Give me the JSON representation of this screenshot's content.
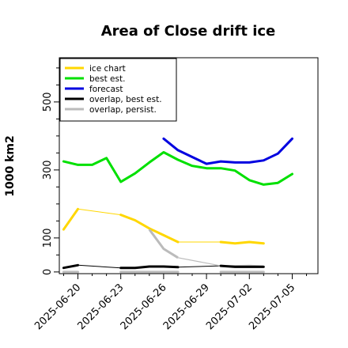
{
  "chart_data": {
    "type": "line",
    "title": "Area of Close drift ice",
    "ylabel": "1000 km2",
    "xlabel": "",
    "ylim": [
      -5,
      630
    ],
    "yticks": [
      0,
      100,
      300,
      500
    ],
    "xticks": [
      {
        "label": "2025-06-20",
        "x": 0,
        "color": "#000000"
      },
      {
        "label": "2025-06-23",
        "x": 3,
        "color": "#000000"
      },
      {
        "label": "2025-06-26",
        "x": 6,
        "color": "#228b22"
      },
      {
        "label": "2025-06-29",
        "x": 9,
        "color": "#000000"
      },
      {
        "label": "2025-07-02",
        "x": 12,
        "color": "#000000"
      },
      {
        "label": "2025-07-05",
        "x": 15,
        "color": "#000000"
      }
    ],
    "xlim": [
      -1.3,
      16.8
    ],
    "grid": false,
    "legend_position": "top-left",
    "series": [
      {
        "name": "ice chart",
        "color": "#ffd700",
        "width": 3,
        "points": [
          [
            -1,
            125
          ],
          [
            0,
            185
          ],
          [
            3,
            168
          ],
          [
            4,
            152
          ],
          [
            5,
            128
          ],
          [
            6,
            108
          ],
          [
            7,
            88
          ],
          [
            10,
            88
          ],
          [
            11,
            84
          ],
          [
            12,
            88
          ],
          [
            13,
            84
          ]
        ]
      },
      {
        "name": "best est.",
        "color": "#00e000",
        "width": 3,
        "points": [
          [
            -1,
            325
          ],
          [
            0,
            315
          ],
          [
            1,
            315
          ],
          [
            2,
            335
          ],
          [
            3,
            265
          ],
          [
            4,
            290
          ],
          [
            5,
            322
          ],
          [
            6,
            352
          ],
          [
            7,
            330
          ],
          [
            8,
            312
          ],
          [
            9,
            305
          ],
          [
            10,
            305
          ],
          [
            11,
            298
          ],
          [
            12,
            270
          ],
          [
            13,
            257
          ],
          [
            14,
            262
          ],
          [
            15,
            288
          ]
        ]
      },
      {
        "name": "forecast",
        "color": "#0000e0",
        "width": 3,
        "points": [
          [
            6,
            392
          ],
          [
            7,
            358
          ],
          [
            8,
            338
          ],
          [
            9,
            318
          ],
          [
            10,
            325
          ],
          [
            11,
            322
          ],
          [
            12,
            322
          ],
          [
            13,
            328
          ],
          [
            14,
            348
          ],
          [
            15,
            392
          ]
        ]
      },
      {
        "name": "overlap, best est.",
        "color": "#000000",
        "width": 3,
        "points": [
          [
            -1,
            12
          ],
          [
            0,
            20
          ],
          [
            3,
            12
          ],
          [
            4,
            12
          ],
          [
            5,
            16
          ],
          [
            6,
            16
          ],
          [
            7,
            14
          ],
          [
            10,
            18
          ],
          [
            11,
            15
          ],
          [
            12,
            15
          ],
          [
            13,
            15
          ]
        ]
      },
      {
        "name": "overlap, persist.",
        "color": "#bbbbbb",
        "width": 3,
        "points": [
          [
            -1,
            0
          ],
          [
            0,
            0
          ],
          [
            3,
            0
          ],
          [
            4,
            0
          ],
          [
            5,
            0
          ],
          [
            6,
            0
          ],
          [
            7,
            0
          ],
          [
            10,
            0
          ],
          [
            11,
            0
          ],
          [
            12,
            0
          ],
          [
            13,
            0
          ]
        ]
      }
    ],
    "thin_lines": [
      {
        "color": "#ffd700",
        "points": [
          [
            0,
            185
          ],
          [
            3,
            168
          ]
        ]
      },
      {
        "color": "#ffd700",
        "points": [
          [
            7,
            88
          ],
          [
            10,
            88
          ]
        ]
      },
      {
        "color": "#000000",
        "points": [
          [
            0,
            20
          ],
          [
            3,
            12
          ]
        ]
      },
      {
        "color": "#000000",
        "points": [
          [
            7,
            14
          ],
          [
            10,
            18
          ]
        ]
      },
      {
        "color": "#bbbbbb",
        "points": [
          [
            5,
            125
          ],
          [
            6,
            68
          ],
          [
            7,
            42
          ],
          [
            10,
            18
          ],
          [
            12,
            20
          ],
          [
            13,
            18
          ]
        ]
      }
    ]
  }
}
